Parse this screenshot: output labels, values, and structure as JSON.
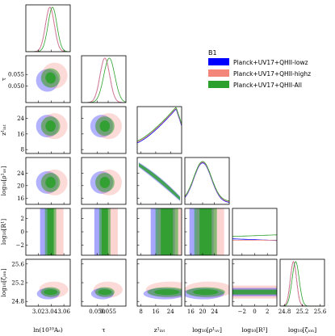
{
  "chart_data": {
    "type": "corner",
    "title": "B1",
    "legend_placement": "top-right",
    "series": [
      {
        "name": "Planck+UV17+QHII-lowz",
        "color": "#0000ff"
      },
      {
        "name": "Planck+UV17+QHII-highz",
        "color": "#f4857a"
      },
      {
        "name": "Planck+UV17+QHII-All",
        "color": "#2ca02c"
      }
    ],
    "parameters": [
      {
        "label": "ln(10¹⁰Aₛ)",
        "range": [
          3.0,
          3.07
        ],
        "ticks": [
          3.02,
          3.04,
          3.06
        ],
        "tick_labels": [
          "3.02",
          "3.04",
          "3.06"
        ]
      },
      {
        "label": "τ",
        "range": [
          0.043,
          0.063
        ],
        "ticks": [
          0.05,
          0.055
        ],
        "tick_labels": [
          "0.050",
          "0.055"
        ]
      },
      {
        "label": "z¹ᵢₙₜ",
        "range": [
          6,
          30
        ],
        "ticks": [
          8,
          16,
          24
        ],
        "tick_labels": [
          "8",
          "16",
          "24"
        ]
      },
      {
        "label": "log₁₀[ρ¹ᵤᵥ]",
        "range": [
          14,
          29
        ],
        "ticks": [
          16,
          20,
          24
        ],
        "tick_labels": [
          "16",
          "20",
          "24"
        ]
      },
      {
        "label": "log₁₀[R¹]",
        "range": [
          -3.5,
          3.5
        ],
        "ticks": [
          -2,
          0,
          2
        ],
        "tick_labels": [
          "−2",
          "0",
          "2"
        ]
      },
      {
        "label": "log₁₀[ζ̇ᵢₒₙ]",
        "range": [
          24.7,
          25.7
        ],
        "ticks": [
          24.8,
          25.2,
          25.6
        ],
        "tick_labels": [
          "24.8",
          "25.2",
          "25.6"
        ]
      }
    ],
    "marginals_1d": [
      {
        "param": 0,
        "peaks": [
          3.038,
          3.038,
          3.042
        ],
        "widths": [
          0.007,
          0.007,
          0.007
        ]
      },
      {
        "param": 1,
        "peaks": [
          0.0535,
          0.0535,
          0.0555
        ],
        "widths": [
          0.0022,
          0.0022,
          0.0025
        ]
      },
      {
        "param": 2,
        "shape": "rising",
        "peak": 27
      },
      {
        "param": 3,
        "shape": "falling",
        "peak": 20
      },
      {
        "param": 4,
        "shape": "flat"
      },
      {
        "param": 5,
        "peaks": [
          25.0,
          25.0,
          25.05
        ],
        "widths": [
          0.07,
          0.07,
          0.08
        ]
      }
    ]
  }
}
